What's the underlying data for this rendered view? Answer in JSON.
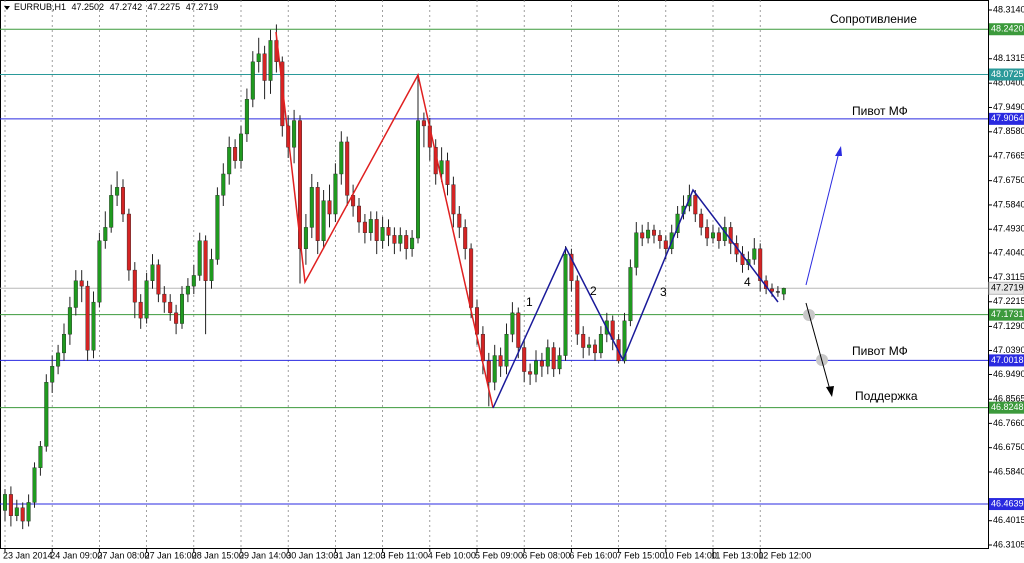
{
  "chart_data": {
    "type": "candlestick",
    "symbol": "EURRUB,H1",
    "categories": [
      "23 Jan 2014",
      null,
      null,
      null,
      null,
      null,
      null,
      null,
      "24 Jan 09:00",
      null,
      null,
      null,
      null,
      null,
      null,
      null,
      "27 Jan 08:00",
      null,
      null,
      null,
      null,
      null,
      null,
      null,
      "27 Jan 16:00",
      null,
      null,
      null,
      null,
      null,
      null,
      null,
      "28 Jan 15:00",
      null,
      null,
      null,
      null,
      null,
      null,
      null,
      "29 Jan 14:00",
      null,
      null,
      null,
      null,
      null,
      null,
      null,
      "30 Jan 13:00",
      null,
      null,
      null,
      null,
      null,
      null,
      null,
      "31 Jan 12:00",
      null,
      null,
      null,
      null,
      null,
      null,
      null,
      "3 Feb 11:00",
      null,
      null,
      null,
      null,
      null,
      null,
      null,
      "4 Feb 10:00",
      null,
      null,
      null,
      null,
      null,
      null,
      null,
      "5 Feb 09:00",
      null,
      null,
      null,
      null,
      null,
      null,
      null,
      "6 Feb 08:00",
      null,
      null,
      null,
      null,
      null,
      null,
      null,
      "6 Feb 16:00",
      null,
      null,
      null,
      null,
      null,
      null,
      null,
      "7 Feb 15:00",
      null,
      null,
      null,
      null,
      null,
      null,
      null,
      "10 Feb 14:00",
      null,
      null,
      null,
      null,
      null,
      null,
      null,
      "11 Feb 13:00",
      null,
      null,
      null,
      null,
      null,
      null,
      null,
      "12 Feb 12:00",
      null,
      null,
      null,
      null
    ],
    "open": [
      46.44,
      46.5,
      46.42,
      46.45,
      46.4,
      46.47,
      46.6,
      46.68,
      46.92,
      46.98,
      47.03,
      47.1,
      47.2,
      47.3,
      47.28,
      47.04,
      47.22,
      47.45,
      47.5,
      47.62,
      47.65,
      47.55,
      47.34,
      47.22,
      47.16,
      47.3,
      47.36,
      47.25,
      47.22,
      47.18,
      47.14,
      47.25,
      47.28,
      47.32,
      47.45,
      47.3,
      47.38,
      47.62,
      47.7,
      47.8,
      47.75,
      47.85,
      47.98,
      48.12,
      48.15,
      48.05,
      48.2,
      48.12,
      47.88,
      47.8,
      47.9,
      47.42,
      47.5,
      47.65,
      47.45,
      47.6,
      47.55,
      47.7,
      47.82,
      47.62,
      47.58,
      47.52,
      47.48,
      47.53,
      47.45,
      47.5,
      47.47,
      47.44,
      47.47,
      47.42,
      47.46,
      47.9,
      47.88,
      47.8,
      47.7,
      47.75,
      47.66,
      47.55,
      47.5,
      47.42,
      47.2,
      47.1,
      47.0,
      46.92,
      47.02,
      46.98,
      47.1,
      47.18,
      47.05,
      46.96,
      46.95,
      47.0,
      46.98,
      47.05,
      46.97,
      47.02,
      47.4,
      47.3,
      47.1,
      47.05,
      47.06,
      47.03,
      47.1,
      47.15,
      47.08,
      47.0,
      47.15,
      47.35,
      47.48,
      47.46,
      47.49,
      47.47,
      47.45,
      47.42,
      47.48,
      47.55,
      47.58,
      47.62,
      47.55,
      47.5,
      47.46,
      47.48,
      47.45,
      47.5,
      47.44,
      47.4,
      47.36,
      47.38,
      47.42,
      47.3,
      47.27,
      47.26,
      47.2502
    ],
    "high": [
      46.52,
      46.53,
      46.48,
      46.47,
      46.5,
      46.62,
      46.7,
      46.95,
      47.02,
      47.06,
      47.14,
      47.24,
      47.34,
      47.34,
      47.3,
      47.26,
      47.48,
      47.56,
      47.66,
      47.71,
      47.68,
      47.57,
      47.37,
      47.25,
      47.33,
      47.4,
      47.38,
      47.28,
      47.25,
      47.21,
      47.28,
      47.31,
      47.36,
      47.48,
      47.47,
      47.42,
      47.65,
      47.74,
      47.84,
      47.83,
      47.88,
      48.02,
      48.16,
      48.21,
      48.18,
      48.24,
      48.26,
      48.14,
      47.92,
      47.94,
      47.92,
      47.55,
      47.7,
      47.67,
      47.64,
      47.66,
      47.74,
      47.86,
      47.84,
      47.66,
      47.61,
      47.55,
      47.56,
      47.56,
      47.54,
      47.53,
      47.5,
      47.5,
      47.49,
      47.49,
      48.07,
      47.93,
      47.91,
      47.83,
      47.8,
      47.78,
      47.69,
      47.58,
      47.53,
      47.44,
      47.23,
      47.13,
      47.03,
      47.06,
      47.05,
      47.14,
      47.22,
      47.2,
      47.08,
      46.99,
      47.04,
      47.03,
      47.08,
      47.07,
      47.05,
      47.43,
      47.42,
      47.32,
      47.13,
      47.09,
      47.08,
      47.13,
      47.18,
      47.17,
      47.1,
      47.18,
      47.38,
      47.52,
      47.51,
      47.52,
      47.51,
      47.49,
      47.47,
      47.51,
      47.58,
      47.62,
      47.66,
      47.64,
      47.57,
      47.53,
      47.51,
      47.5,
      47.54,
      47.52,
      47.47,
      47.43,
      47.41,
      47.46,
      47.44,
      47.32,
      47.29,
      47.28,
      47.2742
    ],
    "low": [
      46.4,
      46.38,
      46.4,
      46.37,
      46.38,
      46.45,
      46.57,
      46.66,
      46.88,
      46.95,
      47.0,
      47.06,
      47.17,
      47.22,
      47.0,
      47.01,
      47.2,
      47.42,
      47.48,
      47.58,
      47.52,
      47.3,
      47.16,
      47.12,
      47.14,
      47.27,
      47.22,
      47.18,
      47.15,
      47.1,
      47.12,
      47.22,
      47.25,
      47.3,
      47.1,
      47.27,
      47.36,
      47.58,
      47.66,
      47.72,
      47.72,
      47.82,
      47.95,
      48.08,
      47.98,
      48.0,
      48.08,
      47.84,
      47.76,
      47.74,
      47.29,
      47.36,
      47.46,
      47.4,
      47.42,
      47.5,
      47.52,
      47.66,
      47.58,
      47.54,
      47.48,
      47.44,
      47.45,
      47.4,
      47.42,
      47.43,
      47.4,
      47.41,
      47.38,
      47.39,
      47.44,
      47.8,
      47.75,
      47.66,
      47.67,
      47.62,
      47.5,
      47.46,
      47.38,
      47.16,
      47.06,
      46.95,
      46.83,
      46.89,
      46.94,
      46.95,
      47.07,
      47.01,
      46.92,
      46.91,
      46.92,
      46.94,
      46.95,
      46.94,
      46.95,
      47.0,
      47.26,
      47.06,
      47.01,
      47.02,
      47.0,
      47.01,
      47.07,
      47.04,
      46.99,
      46.99,
      47.13,
      47.32,
      47.43,
      47.44,
      47.44,
      47.42,
      47.38,
      47.4,
      47.46,
      47.53,
      47.56,
      47.52,
      47.47,
      47.43,
      47.44,
      47.42,
      47.43,
      47.4,
      47.37,
      47.33,
      47.34,
      47.36,
      47.26,
      47.25,
      47.24,
      47.24,
      47.2275
    ],
    "close": [
      46.5,
      46.42,
      46.45,
      46.4,
      46.47,
      46.6,
      46.68,
      46.92,
      46.98,
      47.03,
      47.1,
      47.2,
      47.3,
      47.28,
      47.04,
      47.22,
      47.45,
      47.5,
      47.62,
      47.65,
      47.55,
      47.34,
      47.22,
      47.16,
      47.3,
      47.36,
      47.25,
      47.22,
      47.18,
      47.14,
      47.25,
      47.28,
      47.32,
      47.45,
      47.3,
      47.38,
      47.62,
      47.7,
      47.8,
      47.75,
      47.85,
      47.98,
      48.12,
      48.15,
      48.05,
      48.2,
      48.12,
      47.88,
      47.8,
      47.9,
      47.42,
      47.5,
      47.65,
      47.45,
      47.6,
      47.55,
      47.7,
      47.82,
      47.62,
      47.58,
      47.52,
      47.48,
      47.53,
      47.45,
      47.5,
      47.47,
      47.44,
      47.47,
      47.42,
      47.46,
      47.9,
      47.88,
      47.8,
      47.7,
      47.75,
      47.66,
      47.55,
      47.5,
      47.42,
      47.2,
      47.1,
      47.0,
      46.92,
      47.02,
      46.98,
      47.1,
      47.18,
      47.05,
      46.96,
      46.95,
      47.0,
      46.98,
      47.05,
      46.97,
      47.02,
      47.4,
      47.3,
      47.1,
      47.05,
      47.06,
      47.03,
      47.1,
      47.15,
      47.08,
      47.0,
      47.15,
      47.35,
      47.48,
      47.46,
      47.49,
      47.47,
      47.45,
      47.42,
      47.48,
      47.55,
      47.58,
      47.62,
      47.55,
      47.5,
      47.46,
      47.48,
      47.45,
      47.5,
      47.44,
      47.4,
      47.36,
      47.38,
      47.42,
      47.3,
      47.27,
      47.26,
      47.26,
      47.2719
    ],
    "up_color": "#1f9a1f",
    "down_color": "#d42424",
    "wick_color": "#222222",
    "current_color": "#b8b8b8",
    "ylim": [
      46.2993,
      48.3515
    ],
    "yticks": [
      {
        "value": 48.314,
        "label": "48.3140"
      },
      {
        "value": 48.1315,
        "label": "48.1315"
      },
      {
        "value": 48.04,
        "label": "48.0400"
      },
      {
        "value": 47.949,
        "label": "47.9490"
      },
      {
        "value": 47.858,
        "label": "47.8580"
      },
      {
        "value": 47.7665,
        "label": "47.7665"
      },
      {
        "value": 47.675,
        "label": "47.6750"
      },
      {
        "value": 47.584,
        "label": "47.5840"
      },
      {
        "value": 47.493,
        "label": "47.4930"
      },
      {
        "value": 47.404,
        "label": "47.4040"
      },
      {
        "value": 47.3115,
        "label": "47.3115"
      },
      {
        "value": 47.2215,
        "label": "47.2215"
      },
      {
        "value": 47.129,
        "label": "47.1290"
      },
      {
        "value": 47.039,
        "label": "47.0390"
      },
      {
        "value": 46.949,
        "label": "46.9490"
      },
      {
        "value": 46.8565,
        "label": "46.8565"
      },
      {
        "value": 46.766,
        "label": "46.7660"
      },
      {
        "value": 46.675,
        "label": "46.6750"
      },
      {
        "value": 46.584,
        "label": "46.5840"
      },
      {
        "value": 46.4015,
        "label": "46.4015"
      },
      {
        "value": 46.3105,
        "label": "46.3105"
      }
    ],
    "grid": true,
    "levels": [
      {
        "value": 48.242,
        "label": "48.2420",
        "color": "#3c9a3c"
      },
      {
        "value": 48.0725,
        "label": "48.0725",
        "color": "#2a9a9a"
      },
      {
        "value": 47.9064,
        "label": "47.9064",
        "color": "#2a2ae0"
      },
      {
        "value": 47.1731,
        "label": "47.1731",
        "color": "#3c9a3c"
      },
      {
        "value": 47.0018,
        "label": "47.0018",
        "color": "#2a2ae0"
      },
      {
        "value": 46.8248,
        "label": "46.8248",
        "color": "#3c9a3c"
      },
      {
        "value": 46.4639,
        "label": "46.4639",
        "color": "#2a2ae0"
      }
    ],
    "annotations": [
      "Сопротивление",
      "Пивот МФ",
      "Пивот МФ",
      "Поддержка",
      "1",
      "2",
      "3",
      "4"
    ]
  }
}
